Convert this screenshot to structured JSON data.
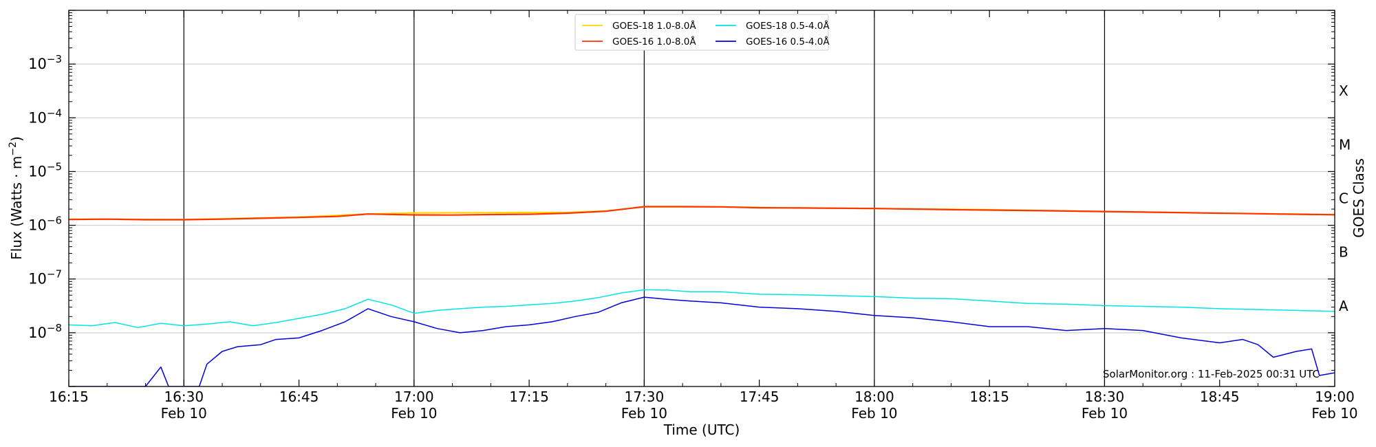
{
  "chart_data": {
    "type": "line",
    "xlabel": "Time (UTC)",
    "ylabel": "Flux (Watts · m",
    "ylabel_sup": "−2",
    "ylabel_end": ")",
    "right_axis_label": "GOES Class",
    "watermark": "SolarMonitor.org : 11-Feb-2025 00:31 UTC",
    "y_scale": "log",
    "ylim": [
      1e-09,
      0.01
    ],
    "xlim": [
      "16:15",
      "19:00"
    ],
    "grid": "horizontal",
    "legend_placement": "top-center",
    "x_ticks": [
      {
        "time": "16:15",
        "label": "16:15",
        "date": ""
      },
      {
        "time": "16:30",
        "label": "16:30",
        "date": "Feb 10"
      },
      {
        "time": "16:45",
        "label": "16:45",
        "date": ""
      },
      {
        "time": "17:00",
        "label": "17:00",
        "date": "Feb 10"
      },
      {
        "time": "17:15",
        "label": "17:15",
        "date": ""
      },
      {
        "time": "17:30",
        "label": "17:30",
        "date": "Feb 10"
      },
      {
        "time": "17:45",
        "label": "17:45",
        "date": ""
      },
      {
        "time": "18:00",
        "label": "18:00",
        "date": "Feb 10"
      },
      {
        "time": "18:15",
        "label": "18:15",
        "date": ""
      },
      {
        "time": "18:30",
        "label": "18:30",
        "date": "Feb 10"
      },
      {
        "time": "18:45",
        "label": "18:45",
        "date": ""
      },
      {
        "time": "19:00",
        "label": "19:00",
        "date": "Feb 10"
      }
    ],
    "vlines": [
      "16:30",
      "17:00",
      "17:30",
      "18:00",
      "18:30"
    ],
    "y_ticks": [
      {
        "value": 1e-08,
        "base": "10",
        "exp": "−8"
      },
      {
        "value": 1e-07,
        "base": "10",
        "exp": "−7"
      },
      {
        "value": 1e-06,
        "base": "10",
        "exp": "−6"
      },
      {
        "value": 1e-05,
        "base": "10",
        "exp": "−5"
      },
      {
        "value": 0.0001,
        "base": "10",
        "exp": "−4"
      },
      {
        "value": 0.001,
        "base": "10",
        "exp": "−3"
      }
    ],
    "classes": [
      {
        "label": "A",
        "value": 3.16e-08
      },
      {
        "label": "B",
        "value": 3.16e-07
      },
      {
        "label": "C",
        "value": 3.16e-06
      },
      {
        "label": "M",
        "value": 3.16e-05
      },
      {
        "label": "X",
        "value": 0.000316
      }
    ],
    "series": [
      {
        "name": "GOES-18 1.0-8.0Å",
        "color": "#ffd700",
        "points": [
          [
            "16:15",
            1.3e-06
          ],
          [
            "16:30",
            1.28e-06
          ],
          [
            "16:45",
            1.42e-06
          ],
          [
            "16:54",
            1.62e-06
          ],
          [
            "17:00",
            1.7e-06
          ],
          [
            "17:10",
            1.72e-06
          ],
          [
            "17:20",
            1.74e-06
          ],
          [
            "17:25",
            1.85e-06
          ],
          [
            "17:30",
            2.2e-06
          ],
          [
            "17:40",
            2.2e-06
          ],
          [
            "17:50",
            2.1e-06
          ],
          [
            "18:00",
            2.05e-06
          ],
          [
            "18:15",
            1.95e-06
          ],
          [
            "18:30",
            1.8e-06
          ],
          [
            "18:45",
            1.68e-06
          ],
          [
            "19:00",
            1.58e-06
          ]
        ]
      },
      {
        "name": "GOES-16 1.0-8.0Å",
        "color": "#ff3300",
        "points": [
          [
            "16:15",
            1.28e-06
          ],
          [
            "16:20",
            1.3e-06
          ],
          [
            "16:25",
            1.27e-06
          ],
          [
            "16:30",
            1.27e-06
          ],
          [
            "16:35",
            1.3e-06
          ],
          [
            "16:40",
            1.35e-06
          ],
          [
            "16:45",
            1.4e-06
          ],
          [
            "16:50",
            1.46e-06
          ],
          [
            "16:54",
            1.62e-06
          ],
          [
            "17:00",
            1.56e-06
          ],
          [
            "17:05",
            1.55e-06
          ],
          [
            "17:10",
            1.58e-06
          ],
          [
            "17:15",
            1.6e-06
          ],
          [
            "17:20",
            1.68e-06
          ],
          [
            "17:25",
            1.82e-06
          ],
          [
            "17:28",
            2.05e-06
          ],
          [
            "17:30",
            2.22e-06
          ],
          [
            "17:35",
            2.22e-06
          ],
          [
            "17:40",
            2.2e-06
          ],
          [
            "17:45",
            2.12e-06
          ],
          [
            "17:50",
            2.1e-06
          ],
          [
            "18:00",
            2.05e-06
          ],
          [
            "18:10",
            1.95e-06
          ],
          [
            "18:20",
            1.88e-06
          ],
          [
            "18:30",
            1.8e-06
          ],
          [
            "18:40",
            1.72e-06
          ],
          [
            "18:50",
            1.64e-06
          ],
          [
            "19:00",
            1.57e-06
          ]
        ]
      },
      {
        "name": "GOES-18 0.5-4.0Å",
        "color": "#00e5e5",
        "points": [
          [
            "16:15",
            1.4e-08
          ],
          [
            "16:18",
            1.35e-08
          ],
          [
            "16:21",
            1.55e-08
          ],
          [
            "16:24",
            1.25e-08
          ],
          [
            "16:27",
            1.5e-08
          ],
          [
            "16:30",
            1.35e-08
          ],
          [
            "16:33",
            1.45e-08
          ],
          [
            "16:36",
            1.6e-08
          ],
          [
            "16:39",
            1.35e-08
          ],
          [
            "16:42",
            1.55e-08
          ],
          [
            "16:45",
            1.85e-08
          ],
          [
            "16:48",
            2.2e-08
          ],
          [
            "16:51",
            2.8e-08
          ],
          [
            "16:54",
            4.2e-08
          ],
          [
            "16:57",
            3.3e-08
          ],
          [
            "17:00",
            2.3e-08
          ],
          [
            "17:03",
            2.6e-08
          ],
          [
            "17:06",
            2.8e-08
          ],
          [
            "17:09",
            3e-08
          ],
          [
            "17:12",
            3.1e-08
          ],
          [
            "17:15",
            3.3e-08
          ],
          [
            "17:18",
            3.5e-08
          ],
          [
            "17:21",
            3.9e-08
          ],
          [
            "17:24",
            4.5e-08
          ],
          [
            "17:27",
            5.5e-08
          ],
          [
            "17:30",
            6.3e-08
          ],
          [
            "17:33",
            6.2e-08
          ],
          [
            "17:36",
            5.8e-08
          ],
          [
            "17:40",
            5.8e-08
          ],
          [
            "17:45",
            5.2e-08
          ],
          [
            "17:50",
            5.1e-08
          ],
          [
            "17:55",
            4.9e-08
          ],
          [
            "18:00",
            4.7e-08
          ],
          [
            "18:05",
            4.4e-08
          ],
          [
            "18:10",
            4.3e-08
          ],
          [
            "18:15",
            3.9e-08
          ],
          [
            "18:20",
            3.5e-08
          ],
          [
            "18:25",
            3.4e-08
          ],
          [
            "18:30",
            3.2e-08
          ],
          [
            "18:35",
            3.1e-08
          ],
          [
            "18:40",
            3e-08
          ],
          [
            "18:45",
            2.8e-08
          ],
          [
            "18:50",
            2.7e-08
          ],
          [
            "18:55",
            2.6e-08
          ],
          [
            "19:00",
            2.5e-08
          ]
        ]
      },
      {
        "name": "GOES-16 0.5-4.0Å",
        "color": "#0000dd",
        "points": [
          [
            "16:15",
            1e-09
          ],
          [
            "16:20",
            1e-09
          ],
          [
            "16:25",
            1e-09
          ],
          [
            "16:27",
            2.3e-09
          ],
          [
            "16:28",
            1e-09
          ],
          [
            "16:30",
            1e-09
          ],
          [
            "16:32",
            1e-09
          ],
          [
            "16:33",
            2.6e-09
          ],
          [
            "16:35",
            4.5e-09
          ],
          [
            "16:37",
            5.5e-09
          ],
          [
            "16:40",
            6e-09
          ],
          [
            "16:42",
            7.5e-09
          ],
          [
            "16:45",
            8e-09
          ],
          [
            "16:48",
            1.1e-08
          ],
          [
            "16:51",
            1.6e-08
          ],
          [
            "16:54",
            2.8e-08
          ],
          [
            "16:57",
            2e-08
          ],
          [
            "17:00",
            1.6e-08
          ],
          [
            "17:03",
            1.2e-08
          ],
          [
            "17:06",
            1e-08
          ],
          [
            "17:09",
            1.1e-08
          ],
          [
            "17:12",
            1.3e-08
          ],
          [
            "17:15",
            1.4e-08
          ],
          [
            "17:18",
            1.6e-08
          ],
          [
            "17:21",
            2e-08
          ],
          [
            "17:24",
            2.4e-08
          ],
          [
            "17:27",
            3.6e-08
          ],
          [
            "17:30",
            4.6e-08
          ],
          [
            "17:33",
            4.2e-08
          ],
          [
            "17:36",
            3.9e-08
          ],
          [
            "17:40",
            3.6e-08
          ],
          [
            "17:45",
            3e-08
          ],
          [
            "17:50",
            2.8e-08
          ],
          [
            "17:55",
            2.5e-08
          ],
          [
            "18:00",
            2.1e-08
          ],
          [
            "18:05",
            1.9e-08
          ],
          [
            "18:10",
            1.6e-08
          ],
          [
            "18:15",
            1.3e-08
          ],
          [
            "18:20",
            1.3e-08
          ],
          [
            "18:25",
            1.1e-08
          ],
          [
            "18:30",
            1.2e-08
          ],
          [
            "18:35",
            1.1e-08
          ],
          [
            "18:40",
            8e-09
          ],
          [
            "18:45",
            6.5e-09
          ],
          [
            "18:48",
            7.5e-09
          ],
          [
            "18:50",
            6e-09
          ],
          [
            "18:52",
            3.5e-09
          ],
          [
            "18:55",
            4.5e-09
          ],
          [
            "18:57",
            5e-09
          ],
          [
            "18:58",
            1.6e-09
          ],
          [
            "19:00",
            1.8e-09
          ]
        ]
      }
    ]
  }
}
